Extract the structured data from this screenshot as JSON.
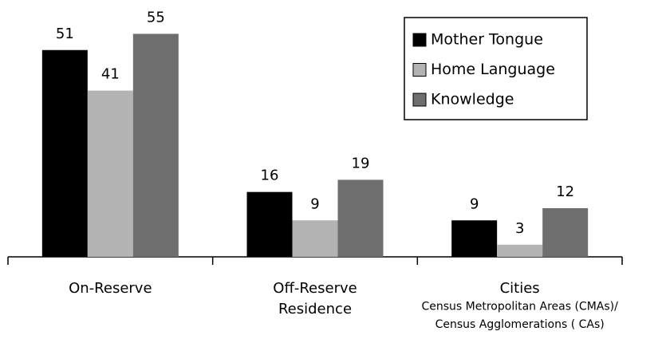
{
  "chart_data": {
    "type": "bar",
    "categories": [
      "On-Reserve",
      "Off-Reserve Residence",
      "Cities"
    ],
    "annotations": [
      {
        "text": "Census Metropolitan Areas (CMAs)/",
        "category": 2
      },
      {
        "text": "Census Agglomerations ( CAs)",
        "category": 2
      }
    ],
    "series": [
      {
        "name": "Mother Tongue",
        "color": "#000000",
        "values": [
          51,
          16,
          9
        ]
      },
      {
        "name": "Home Language",
        "color": "#b3b3b3",
        "values": [
          41,
          9,
          3
        ]
      },
      {
        "name": "Knowledge",
        "color": "#6e6e6e",
        "values": [
          55,
          19,
          12
        ]
      }
    ],
    "ylim": [
      0,
      60
    ],
    "legend": "upper right"
  }
}
